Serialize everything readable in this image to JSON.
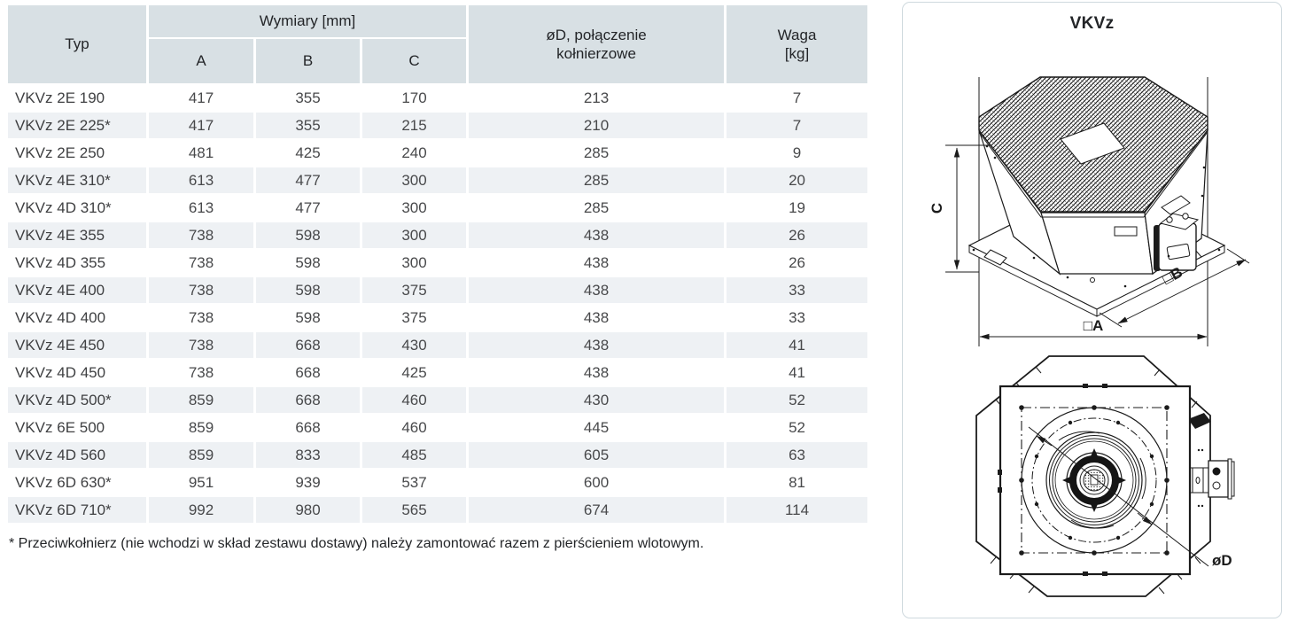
{
  "table": {
    "headers": {
      "typ": "Typ",
      "wymiary": "Wymiary [mm]",
      "a": "A",
      "b": "B",
      "c": "C",
      "od": "øD, połączenie\nkołnierzowe",
      "waga": "Waga\n[kg]"
    },
    "rows": [
      {
        "typ": "VKVz 2E 190",
        "a": "417",
        "b": "355",
        "c": "170",
        "od": "213",
        "waga": "7"
      },
      {
        "typ": "VKVz 2E 225*",
        "a": "417",
        "b": "355",
        "c": "215",
        "od": "210",
        "waga": "7"
      },
      {
        "typ": "VKVz 2E 250",
        "a": "481",
        "b": "425",
        "c": "240",
        "od": "285",
        "waga": "9"
      },
      {
        "typ": "VKVz 4E 310*",
        "a": "613",
        "b": "477",
        "c": "300",
        "od": "285",
        "waga": "20"
      },
      {
        "typ": "VKVz 4D 310*",
        "a": "613",
        "b": "477",
        "c": "300",
        "od": "285",
        "waga": "19"
      },
      {
        "typ": "VKVz 4E 355",
        "a": "738",
        "b": "598",
        "c": "300",
        "od": "438",
        "waga": "26"
      },
      {
        "typ": "VKVz 4D 355",
        "a": "738",
        "b": "598",
        "c": "300",
        "od": "438",
        "waga": "26"
      },
      {
        "typ": "VKVz 4E 400",
        "a": "738",
        "b": "598",
        "c": "375",
        "od": "438",
        "waga": "33"
      },
      {
        "typ": "VKVz 4D 400",
        "a": "738",
        "b": "598",
        "c": "375",
        "od": "438",
        "waga": "33"
      },
      {
        "typ": "VKVz 4E 450",
        "a": "738",
        "b": "668",
        "c": "430",
        "od": "438",
        "waga": "41"
      },
      {
        "typ": "VKVz 4D 450",
        "a": "738",
        "b": "668",
        "c": "425",
        "od": "438",
        "waga": "41"
      },
      {
        "typ": "VKVz 4D 500*",
        "a": "859",
        "b": "668",
        "c": "460",
        "od": "430",
        "waga": "52"
      },
      {
        "typ": "VKVz 6E 500",
        "a": "859",
        "b": "668",
        "c": "460",
        "od": "445",
        "waga": "52"
      },
      {
        "typ": "VKVz 4D 560",
        "a": "859",
        "b": "833",
        "c": "485",
        "od": "605",
        "waga": "63"
      },
      {
        "typ": "VKVz 6D 630*",
        "a": "951",
        "b": "939",
        "c": "537",
        "od": "600",
        "waga": "81"
      },
      {
        "typ": "VKVz 6D 710*",
        "a": "992",
        "b": "980",
        "c": "565",
        "od": "674",
        "waga": "114"
      }
    ],
    "footnote": "* Przeciwkołnierz (nie wchodzi w skład zestawu dostawy) należy zamontować razem z pierścieniem wlotowym."
  },
  "drawing": {
    "title": "VKVz",
    "labels": {
      "dim_a": "□A",
      "dim_b": "□B",
      "dim_c": "C",
      "dim_d": "øD"
    }
  },
  "colors": {
    "header_bg": "#d8e0e4",
    "row_alt_bg": "#eef1f4",
    "body_text": "#48494b",
    "header_text": "#232528",
    "line": "#1b1b1b",
    "panel_border": "#cfd9de"
  }
}
